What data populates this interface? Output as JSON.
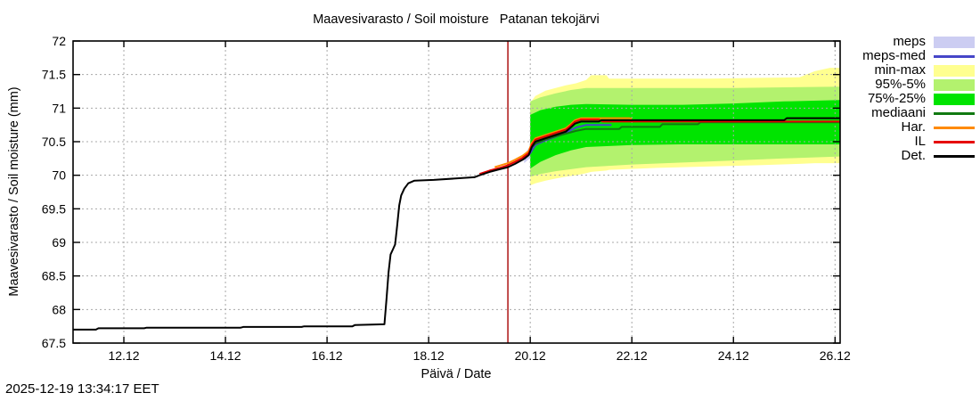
{
  "title": "Maavesivarasto / Soil moisture   Patanan tekojärvi",
  "x_axis_label": "Päivä / Date",
  "y_axis_label": "Maavesivarasto / Soil moisture (mm)",
  "timestamp": "2025-12-19 13:34:17 EET",
  "chart_data": {
    "type": "line",
    "title": "Maavesivarasto / Soil moisture  Patanan tekojärvi",
    "xlabel": "Päivä / Date",
    "ylabel": "Maavesivarasto / Soil moisture (mm)",
    "x_domain": [
      11.0,
      26.1
    ],
    "y_domain": [
      67.5,
      72
    ],
    "grid": true,
    "grid_color": "#a8a8a8",
    "background": "#ffffff",
    "x_ticks": [
      {
        "t": 12,
        "label": "12.12"
      },
      {
        "t": 14,
        "label": "14.12"
      },
      {
        "t": 16,
        "label": "16.12"
      },
      {
        "t": 18,
        "label": "18.12"
      },
      {
        "t": 20,
        "label": "20.12"
      },
      {
        "t": 22,
        "label": "22.12"
      },
      {
        "t": 24,
        "label": "24.12"
      },
      {
        "t": 26,
        "label": "26.12"
      }
    ],
    "y_ticks": [
      {
        "v": 72,
        "label": "72"
      },
      {
        "v": 71.5,
        "label": "71.5"
      },
      {
        "v": 71,
        "label": "71"
      },
      {
        "v": 70.5,
        "label": "70.5"
      },
      {
        "v": 70,
        "label": "70"
      },
      {
        "v": 69.5,
        "label": "69.5"
      },
      {
        "v": 69,
        "label": "69"
      },
      {
        "v": 68.5,
        "label": "68.5"
      },
      {
        "v": 68,
        "label": "68"
      },
      {
        "v": 67.5,
        "label": "67.5"
      }
    ],
    "current_time": {
      "t": 19.56,
      "color": "#b22222"
    },
    "bands": [
      {
        "name": "meps",
        "color": "#cccdf2",
        "points": [
          [
            19.88,
            70.18,
            70.3
          ],
          [
            20.0,
            70.26,
            70.44
          ],
          [
            20.15,
            70.35,
            70.53
          ],
          [
            20.3,
            70.42,
            70.58
          ],
          [
            20.5,
            70.5,
            70.64
          ],
          [
            20.7,
            70.56,
            70.68
          ]
        ]
      },
      {
        "name": "min-max",
        "color": "#ffff90",
        "points": [
          [
            20.0,
            69.85,
            71.08
          ],
          [
            20.1,
            69.88,
            71.18
          ],
          [
            20.3,
            69.92,
            71.26
          ],
          [
            20.5,
            69.95,
            71.3
          ],
          [
            20.7,
            69.98,
            71.34
          ],
          [
            20.9,
            70.0,
            71.37
          ],
          [
            21.1,
            70.03,
            71.42
          ],
          [
            21.2,
            70.05,
            71.49
          ],
          [
            21.5,
            70.07,
            71.49
          ],
          [
            21.55,
            70.08,
            71.44
          ],
          [
            22.5,
            70.11,
            71.44
          ],
          [
            23.5,
            70.13,
            71.44
          ],
          [
            24.5,
            70.15,
            71.45
          ],
          [
            25.3,
            70.17,
            71.46
          ],
          [
            25.6,
            70.18,
            71.55
          ],
          [
            25.9,
            70.18,
            71.6
          ],
          [
            26.1,
            70.18,
            71.6
          ]
        ]
      },
      {
        "name": "95%-5%",
        "color": "#b3f26e",
        "points": [
          [
            20.0,
            69.98,
            71.1
          ],
          [
            20.2,
            70.02,
            71.16
          ],
          [
            20.5,
            70.06,
            71.22
          ],
          [
            20.8,
            70.09,
            71.27
          ],
          [
            21.1,
            70.12,
            71.3
          ],
          [
            22.0,
            70.16,
            71.3
          ],
          [
            23.0,
            70.19,
            71.3
          ],
          [
            24.0,
            70.22,
            71.3
          ],
          [
            25.0,
            70.25,
            71.31
          ],
          [
            26.1,
            70.28,
            71.32
          ]
        ]
      },
      {
        "name": "75%-25%",
        "color": "#00e400",
        "points": [
          [
            20.0,
            70.1,
            70.9
          ],
          [
            20.2,
            70.2,
            70.97
          ],
          [
            20.5,
            70.3,
            71.02
          ],
          [
            20.8,
            70.37,
            71.05
          ],
          [
            21.1,
            70.42,
            71.06
          ],
          [
            22.0,
            70.45,
            71.05
          ],
          [
            23.0,
            70.46,
            71.05
          ],
          [
            24.0,
            70.46,
            71.07
          ],
          [
            25.0,
            70.46,
            71.1
          ],
          [
            26.1,
            70.46,
            71.12
          ]
        ]
      }
    ],
    "lines": [
      {
        "name": "meps-med",
        "color": "#4646c8",
        "width": 2,
        "points": [
          [
            19.88,
            70.24
          ],
          [
            20.0,
            70.33
          ],
          [
            20.1,
            70.45
          ],
          [
            20.3,
            70.52
          ],
          [
            20.6,
            70.6
          ],
          [
            20.9,
            70.71
          ],
          [
            21.1,
            70.75
          ],
          [
            21.6,
            70.75
          ]
        ]
      },
      {
        "name": "mediaani",
        "color": "#117a11",
        "width": 2,
        "points": [
          [
            20.0,
            70.4
          ],
          [
            20.1,
            70.47
          ],
          [
            20.3,
            70.53
          ],
          [
            20.5,
            70.58
          ],
          [
            20.7,
            70.62
          ],
          [
            20.9,
            70.66
          ],
          [
            21.1,
            70.69
          ],
          [
            21.75,
            70.69
          ],
          [
            21.8,
            70.72
          ],
          [
            22.55,
            70.72
          ],
          [
            22.6,
            70.76
          ],
          [
            23.3,
            70.76
          ],
          [
            23.35,
            70.79
          ],
          [
            26.1,
            70.79
          ]
        ]
      },
      {
        "name": "Har.",
        "color": "#ff8a00",
        "width": 2,
        "points": [
          [
            19.3,
            70.12
          ],
          [
            19.56,
            70.18
          ],
          [
            19.7,
            70.23
          ],
          [
            19.85,
            70.29
          ],
          [
            19.97,
            70.36
          ],
          [
            20.03,
            70.48
          ],
          [
            20.1,
            70.55
          ],
          [
            20.3,
            70.6
          ],
          [
            20.5,
            70.65
          ],
          [
            20.7,
            70.7
          ],
          [
            20.78,
            70.75
          ],
          [
            20.88,
            70.82
          ],
          [
            21.0,
            70.85
          ],
          [
            21.95,
            70.85
          ],
          [
            22.0,
            70.84
          ]
        ]
      },
      {
        "name": "IL",
        "color": "#e60000",
        "width": 2,
        "points": [
          [
            19.0,
            70.02
          ],
          [
            19.2,
            70.07
          ],
          [
            19.4,
            70.11
          ],
          [
            19.56,
            70.15
          ],
          [
            19.7,
            70.2
          ],
          [
            19.85,
            70.26
          ],
          [
            19.97,
            70.33
          ],
          [
            20.03,
            70.45
          ],
          [
            20.1,
            70.53
          ],
          [
            20.3,
            70.58
          ],
          [
            20.5,
            70.63
          ],
          [
            20.7,
            70.68
          ],
          [
            20.78,
            70.73
          ],
          [
            20.88,
            70.8
          ],
          [
            21.0,
            70.83
          ],
          [
            21.35,
            70.83
          ],
          [
            21.42,
            70.8
          ],
          [
            26.1,
            70.8
          ]
        ]
      },
      {
        "name": "Det.",
        "color": "#000000",
        "width": 2,
        "points": [
          [
            11.0,
            67.7
          ],
          [
            11.45,
            67.7
          ],
          [
            11.5,
            67.72
          ],
          [
            12.4,
            67.72
          ],
          [
            12.45,
            67.73
          ],
          [
            14.3,
            67.73
          ],
          [
            14.35,
            67.74
          ],
          [
            15.5,
            67.74
          ],
          [
            15.55,
            67.75
          ],
          [
            16.5,
            67.75
          ],
          [
            16.55,
            67.77
          ],
          [
            17.13,
            67.78
          ],
          [
            17.17,
            68.15
          ],
          [
            17.21,
            68.55
          ],
          [
            17.25,
            68.82
          ],
          [
            17.3,
            68.9
          ],
          [
            17.34,
            68.97
          ],
          [
            17.38,
            69.25
          ],
          [
            17.42,
            69.55
          ],
          [
            17.46,
            69.7
          ],
          [
            17.52,
            69.8
          ],
          [
            17.6,
            69.88
          ],
          [
            17.72,
            69.92
          ],
          [
            18.1,
            69.93
          ],
          [
            18.5,
            69.95
          ],
          [
            18.9,
            69.97
          ],
          [
            19.0,
            70.0
          ],
          [
            19.2,
            70.05
          ],
          [
            19.4,
            70.09
          ],
          [
            19.56,
            70.12
          ],
          [
            19.7,
            70.17
          ],
          [
            19.85,
            70.23
          ],
          [
            19.97,
            70.3
          ],
          [
            20.03,
            70.42
          ],
          [
            20.1,
            70.5
          ],
          [
            20.3,
            70.55
          ],
          [
            20.5,
            70.6
          ],
          [
            20.7,
            70.65
          ],
          [
            20.78,
            70.7
          ],
          [
            20.88,
            70.77
          ],
          [
            21.0,
            70.8
          ],
          [
            21.35,
            70.8
          ],
          [
            21.4,
            70.82
          ],
          [
            25.0,
            70.82
          ],
          [
            25.05,
            70.85
          ],
          [
            26.1,
            70.85
          ]
        ]
      }
    ],
    "legend": [
      {
        "label": "meps",
        "type": "fill",
        "color": "#cccdf2"
      },
      {
        "label": "meps-med",
        "type": "line",
        "color": "#4646c8"
      },
      {
        "label": "min-max",
        "type": "fill",
        "color": "#ffff90"
      },
      {
        "label": "95%-5%",
        "type": "fill",
        "color": "#b3f26e"
      },
      {
        "label": "75%-25%",
        "type": "fill",
        "color": "#00e400"
      },
      {
        "label": "mediaani",
        "type": "line",
        "color": "#117a11"
      },
      {
        "label": "Har.",
        "type": "line",
        "color": "#ff8a00"
      },
      {
        "label": "IL",
        "type": "line",
        "color": "#e60000"
      },
      {
        "label": "Det.",
        "type": "line",
        "color": "#000000"
      }
    ]
  }
}
